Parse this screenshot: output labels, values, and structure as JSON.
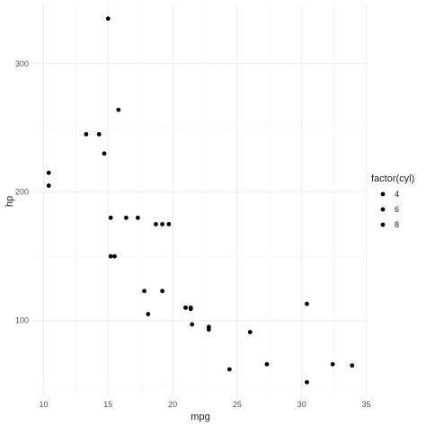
{
  "chart_data": {
    "type": "scatter",
    "xlabel": "mpg",
    "ylabel": "hp",
    "xlim": [
      9.2,
      35.1
    ],
    "ylim": [
      41,
      346
    ],
    "x_ticks": [
      10,
      15,
      20,
      25,
      30,
      35
    ],
    "y_ticks": [
      100,
      200,
      300
    ],
    "x_tick_labels": [
      "10",
      "15",
      "20",
      "25",
      "30",
      "35"
    ],
    "y_tick_labels": [
      "100",
      "200",
      "300"
    ],
    "x_minor_ticks": [
      12.5,
      17.5,
      22.5,
      27.5,
      32.5
    ],
    "y_minor_ticks": [
      50,
      150,
      250
    ],
    "grid": true,
    "point_color": "#000000",
    "grid_color": "#ebebeb",
    "legend": {
      "title": "factor(cyl)",
      "position": "right",
      "entries": [
        "4",
        "6",
        "8"
      ]
    },
    "points": [
      {
        "x": 21.0,
        "y": 110
      },
      {
        "x": 21.0,
        "y": 110
      },
      {
        "x": 22.8,
        "y": 93
      },
      {
        "x": 21.4,
        "y": 110
      },
      {
        "x": 18.7,
        "y": 175
      },
      {
        "x": 18.1,
        "y": 105
      },
      {
        "x": 14.3,
        "y": 245
      },
      {
        "x": 24.4,
        "y": 62
      },
      {
        "x": 22.8,
        "y": 95
      },
      {
        "x": 19.2,
        "y": 123
      },
      {
        "x": 17.8,
        "y": 123
      },
      {
        "x": 16.4,
        "y": 180
      },
      {
        "x": 17.3,
        "y": 180
      },
      {
        "x": 15.2,
        "y": 180
      },
      {
        "x": 10.4,
        "y": 205
      },
      {
        "x": 10.4,
        "y": 215
      },
      {
        "x": 14.7,
        "y": 230
      },
      {
        "x": 32.4,
        "y": 66
      },
      {
        "x": 30.4,
        "y": 52
      },
      {
        "x": 33.9,
        "y": 65
      },
      {
        "x": 21.5,
        "y": 97
      },
      {
        "x": 15.5,
        "y": 150
      },
      {
        "x": 15.2,
        "y": 150
      },
      {
        "x": 13.3,
        "y": 245
      },
      {
        "x": 19.2,
        "y": 175
      },
      {
        "x": 27.3,
        "y": 66
      },
      {
        "x": 26.0,
        "y": 91
      },
      {
        "x": 30.4,
        "y": 113
      },
      {
        "x": 15.8,
        "y": 264
      },
      {
        "x": 19.7,
        "y": 175
      },
      {
        "x": 15.0,
        "y": 335
      },
      {
        "x": 21.4,
        "y": 109
      }
    ]
  }
}
